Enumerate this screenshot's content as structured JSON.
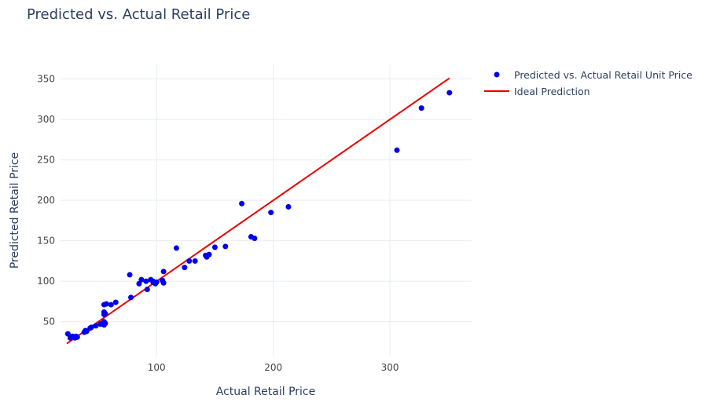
{
  "chart_data": {
    "type": "scatter",
    "title": "Predicted vs. Actual Retail Price",
    "xlabel": "Actual Retail Price",
    "ylabel": "Predicted Retail Price",
    "xlim": [
      17,
      370
    ],
    "ylim": [
      7,
      368
    ],
    "x_ticks": [
      100,
      200,
      300
    ],
    "y_ticks": [
      50,
      100,
      150,
      200,
      250,
      300,
      350
    ],
    "grid": true,
    "legend_position": "top-right",
    "series": [
      {
        "name": "Predicted vs. Actual Retail Unit Price",
        "kind": "markers",
        "color": "#0000ee",
        "x": [
          24,
          26,
          28,
          30,
          31,
          32,
          38,
          39,
          40,
          43,
          44,
          48,
          52,
          54,
          55,
          55,
          55,
          55,
          55,
          56,
          56,
          57,
          61,
          65,
          77,
          78,
          85,
          87,
          91,
          92,
          95,
          97,
          97,
          99,
          100,
          105,
          106,
          106,
          117,
          124,
          128,
          133,
          142,
          143,
          145,
          150,
          159,
          173,
          181,
          184,
          198,
          213,
          306,
          327,
          351
        ],
        "y": [
          35,
          30,
          32,
          30,
          32,
          31,
          37,
          39,
          38,
          42,
          43,
          45,
          47,
          48,
          46,
          50,
          59,
          62,
          71,
          60,
          48,
          72,
          71,
          74,
          108,
          80,
          97,
          102,
          100,
          90,
          102,
          99,
          100,
          97,
          99,
          101,
          98,
          112,
          141,
          117,
          125,
          125,
          132,
          130,
          133,
          142,
          143,
          196,
          155,
          153,
          185,
          192,
          262,
          314,
          333
        ]
      },
      {
        "name": "Ideal Prediction",
        "kind": "line",
        "color": "#ee0000",
        "x": [
          23,
          351
        ],
        "y": [
          23,
          351
        ]
      }
    ]
  }
}
